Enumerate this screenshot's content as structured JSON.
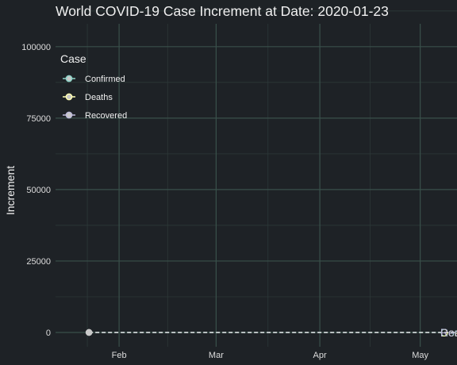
{
  "chart_data": {
    "type": "line",
    "title": "World COVID-19 Case Increment at Date: 2020-01-23",
    "xlabel": "",
    "ylabel": "Increment",
    "x_axis": {
      "type": "date",
      "range": [
        "2020-01-13",
        "2020-05-12"
      ],
      "ticks": [
        {
          "value": "2020-02-01",
          "label": "Feb"
        },
        {
          "value": "2020-03-01",
          "label": "Mar"
        },
        {
          "value": "2020-04-01",
          "label": "Apr"
        },
        {
          "value": "2020-05-01",
          "label": "May"
        }
      ]
    },
    "y_axis": {
      "range": [
        -5000,
        108000
      ],
      "ticks": [
        0,
        25000,
        50000,
        75000,
        100000
      ]
    },
    "grid": true,
    "legend": {
      "title": "Case",
      "placement": "top-left",
      "entries": [
        {
          "name": "Confirmed",
          "color": "#8dd3c7"
        },
        {
          "name": "Deaths",
          "color": "#ffffb3"
        },
        {
          "name": "Recovered",
          "color": "#bebada"
        }
      ]
    },
    "series": [
      {
        "name": "Confirmed",
        "color": "#8dd3c7",
        "points": [
          {
            "x": "2020-01-22",
            "y": 0
          },
          {
            "x": "2020-01-23",
            "y": 0
          }
        ],
        "end_label": {
          "x": "2020-05-07",
          "y": 0
        }
      },
      {
        "name": "Deaths",
        "color": "#ffffb3",
        "points": [
          {
            "x": "2020-01-22",
            "y": 0
          },
          {
            "x": "2020-01-23",
            "y": 0
          }
        ],
        "end_label": {
          "x": "2020-05-07",
          "y": 0
        }
      },
      {
        "name": "Recovered",
        "color": "#bebada",
        "points": [
          {
            "x": "2020-01-22",
            "y": 0
          },
          {
            "x": "2020-01-23",
            "y": 0
          }
        ],
        "end_label": {
          "x": "2020-05-07",
          "y": 0
        }
      }
    ],
    "reference_line": {
      "y": 0,
      "style": "dashed",
      "x_end": "2020-05-12"
    },
    "colors": {
      "background": "#1e2226",
      "grid_major": "#39504a",
      "grid_minor": "#2c3838",
      "reference_line": "#cfd6d8"
    }
  }
}
